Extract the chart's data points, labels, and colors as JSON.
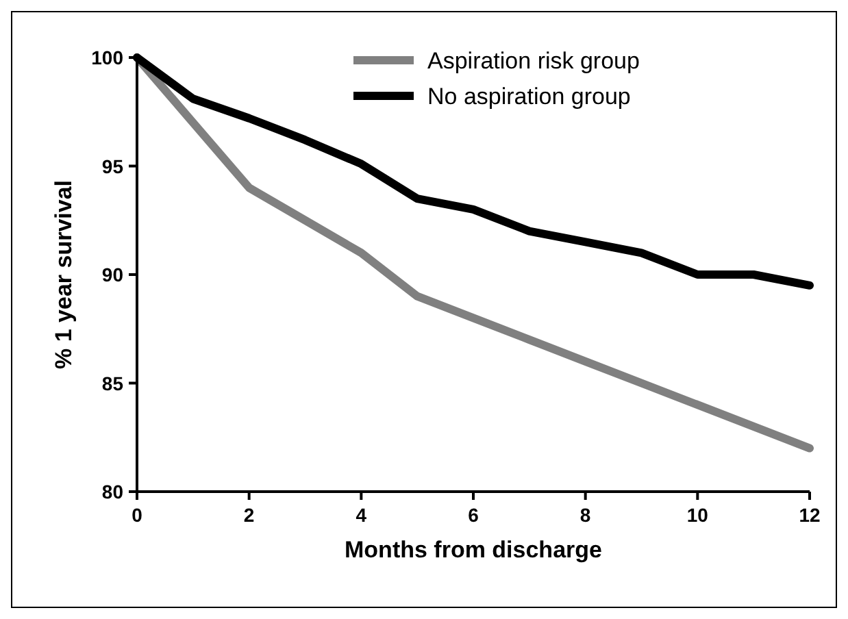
{
  "chart_data": {
    "type": "line",
    "xlabel": "Months from discharge",
    "ylabel": "% 1 year survival",
    "x": [
      0,
      1,
      2,
      3,
      4,
      5,
      6,
      7,
      8,
      9,
      10,
      11,
      12
    ],
    "xlim": [
      0,
      12
    ],
    "xticks": [
      0,
      2,
      4,
      6,
      8,
      10,
      12
    ],
    "ylim": [
      80,
      100
    ],
    "yticks": [
      80,
      85,
      90,
      95,
      100
    ],
    "grid": false,
    "legend": "top right",
    "marker": "none",
    "line_style": "solid",
    "series": [
      {
        "name": "Aspiration risk group",
        "color": "#808080",
        "values": [
          100,
          97,
          94,
          92.5,
          91,
          89,
          88,
          87,
          86,
          85,
          84,
          83,
          82
        ]
      },
      {
        "name": "No aspiration group",
        "color": "#000000",
        "values": [
          100,
          98.1,
          97.2,
          96.2,
          95.1,
          93.5,
          93,
          92,
          91.5,
          91,
          90,
          90,
          89.5
        ]
      }
    ]
  }
}
